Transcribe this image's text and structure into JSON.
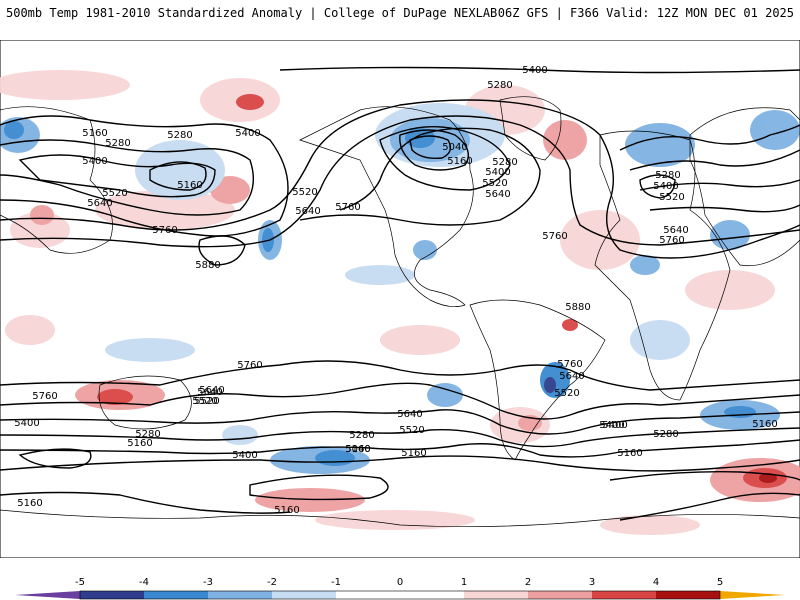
{
  "header": {
    "left": "500mb Temp 1981-2010 Standardized Anomaly | College of DuPage NEXLAB",
    "right": "06Z GFS | F366 Valid: 12Z MON DEC 01 2025"
  },
  "colors": {
    "neg5": "#6a3fa0",
    "neg4": "#2e3e8c",
    "neg3": "#3a88d0",
    "neg2": "#7fb2e2",
    "neg1": "#c6dcf2",
    "zero": "#ffffff",
    "pos1": "#f7d5d5",
    "pos2": "#eea0a0",
    "pos3": "#d94545",
    "pos4": "#a81010",
    "pos5": "#f0a800",
    "contour": "#000000"
  },
  "colorbar": {
    "ticks": [
      "-5",
      "-4",
      "-3",
      "-2",
      "-1",
      "0",
      "1",
      "2",
      "3",
      "4",
      "5"
    ]
  },
  "contour_labels": [
    "5400",
    "5280",
    "5160",
    "5280",
    "5400",
    "5280",
    "5400",
    "5160",
    "5520",
    "5640",
    "5760",
    "5880",
    "5520",
    "5640",
    "5760",
    "5040",
    "5160",
    "5280",
    "5400",
    "5520",
    "5640",
    "5760",
    "5880",
    "5280",
    "5400",
    "5520",
    "5640",
    "5760",
    "5160",
    "5760",
    "5640",
    "5520",
    "5400",
    "5640",
    "5520",
    "5400",
    "5280",
    "5160",
    "5760",
    "5640",
    "5520",
    "5400",
    "5280",
    "5160",
    "5040",
    "5160",
    "5760",
    "5640",
    "5520",
    "5400",
    "5280",
    "5160",
    "5160",
    "5160"
  ]
}
